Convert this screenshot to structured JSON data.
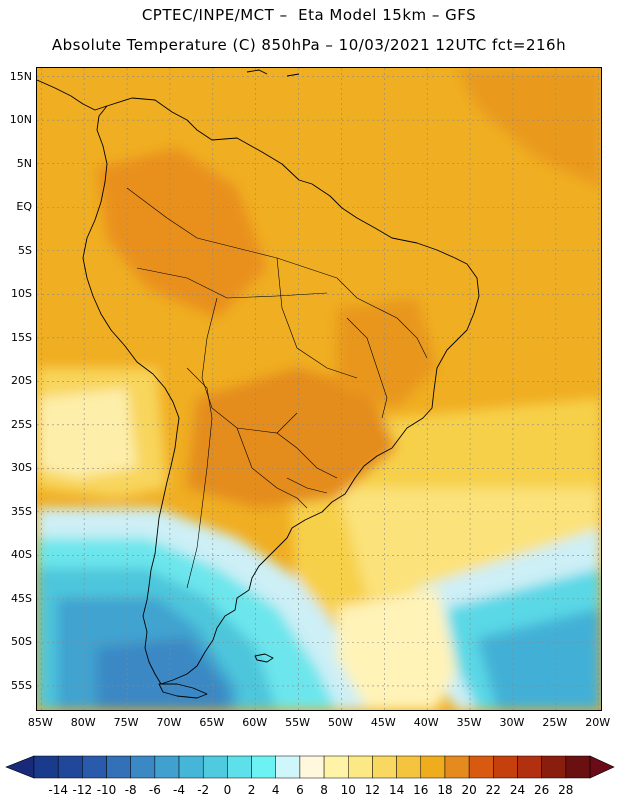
{
  "header": {
    "line1": "CPTEC/INPE/MCT –  Eta Model 15km – GFS",
    "line2": "Absolute Temperature (C) 850hPa – 10/03/2021 12UTC fct=216h"
  },
  "map": {
    "region": "South America",
    "lon_range": [
      -85.5,
      -19.5
    ],
    "lat_range": [
      -58,
      16
    ],
    "lat_labels": [
      "15N",
      "10N",
      "5N",
      "EQ",
      "5S",
      "10S",
      "15S",
      "20S",
      "25S",
      "30S",
      "35S",
      "40S",
      "45S",
      "50S",
      "55S"
    ],
    "lat_values": [
      15,
      10,
      5,
      0,
      -5,
      -10,
      -15,
      -20,
      -25,
      -30,
      -35,
      -40,
      -45,
      -50,
      -55
    ],
    "lon_labels": [
      "85W",
      "80W",
      "75W",
      "70W",
      "65W",
      "60W",
      "55W",
      "50W",
      "45W",
      "40W",
      "35W",
      "30W",
      "25W",
      "20W"
    ],
    "lon_values": [
      -85,
      -80,
      -75,
      -70,
      -65,
      -60,
      -55,
      -50,
      -45,
      -40,
      -35,
      -30,
      -25,
      -20
    ]
  },
  "colorbar": {
    "labels": [
      "-14",
      "-12",
      "-10",
      "-8",
      "-6",
      "-4",
      "-2",
      "0",
      "2",
      "4",
      "6",
      "8",
      "10",
      "12",
      "14",
      "16",
      "18",
      "20",
      "22",
      "24",
      "26",
      "28"
    ],
    "colors": [
      "#1a3a8c",
      "#21479b",
      "#2a5aab",
      "#3370b7",
      "#3a88c4",
      "#40a0cf",
      "#46b6d8",
      "#4fcade",
      "#5ee0ea",
      "#6cf2f2",
      "#cff6fb",
      "#fff8dd",
      "#fff3a8",
      "#fde886",
      "#f8d860",
      "#f5c43e",
      "#efad1e",
      "#e58a1e",
      "#d85a10",
      "#c5400c",
      "#b03010",
      "#8a1e0e",
      "#6a1010"
    ],
    "left_arrow_color": "#1a2a7a",
    "right_arrow_color": "#6a0c18"
  }
}
